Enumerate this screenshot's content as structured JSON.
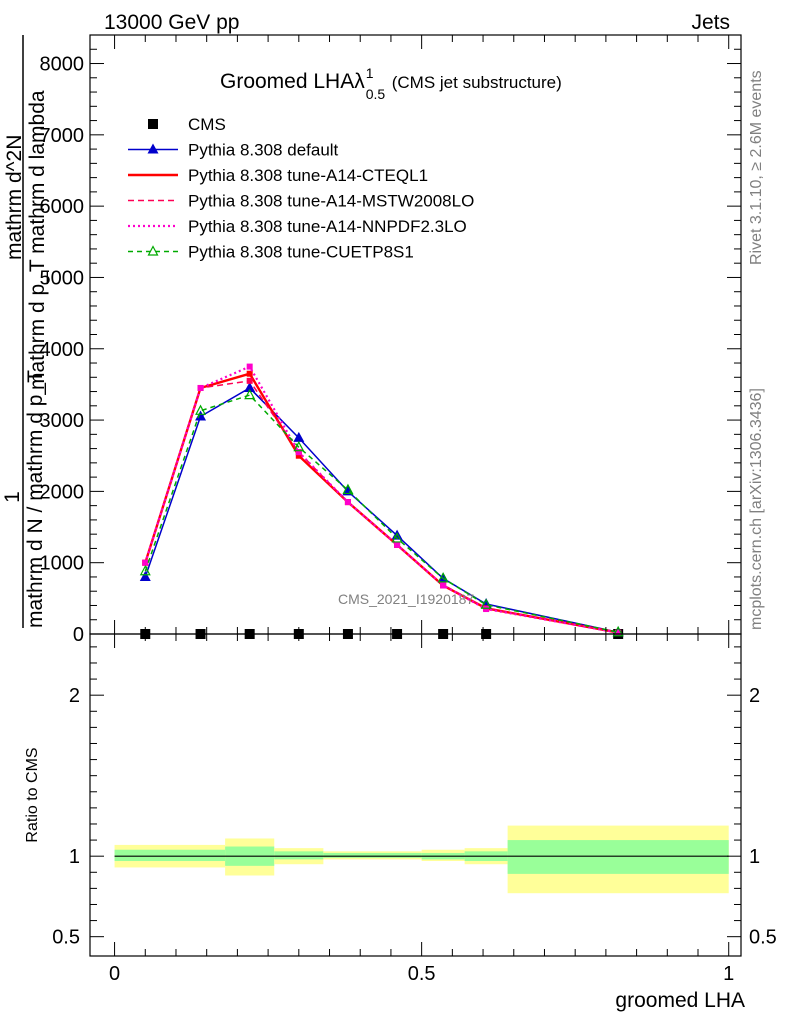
{
  "header": {
    "left": "13000 GeV pp",
    "right": "Jets"
  },
  "side_labels": {
    "rivet": "Rivet 3.1.10, ≥ 2.6M events",
    "mcplots": "mcplots.cern.ch [arXiv:1306.3436]"
  },
  "chart_data": [
    {
      "type": "line",
      "title": "Groomed LHAλ",
      "title_superscript": "1",
      "title_subscript": "0.5",
      "title_suffix": "(CMS jet substructure)",
      "watermark": "CMS_2021_I1920187",
      "ylabel_lines": [
        "1",
        "mathrm d N",
        "mathrm d N",
        "mathrm d p",
        "T",
        "mathrm d lambda"
      ],
      "ylabel_fragments": {
        "top": "mathrm d^2N",
        "top_line2": "mathrm d p_T mathrm d lambda",
        "bottom": "mathrm d N / mathrm d p_T"
      },
      "xlim": [
        -0.04,
        1.02
      ],
      "ylim": [
        0,
        8400
      ],
      "yticks": [
        0,
        1000,
        2000,
        3000,
        4000,
        5000,
        6000,
        7000,
        8000
      ],
      "ytick_labels": [
        "0",
        "1000",
        "2000",
        "3000",
        "4000",
        "5000",
        "6000",
        "7000",
        "8000"
      ],
      "bin_edges": [
        0,
        0.1,
        0.18,
        0.26,
        0.34,
        0.42,
        0.5,
        0.57,
        0.64,
        1.0
      ],
      "x": [
        0.05,
        0.14,
        0.22,
        0.3,
        0.38,
        0.46,
        0.535,
        0.605,
        0.82
      ],
      "legend_position": "top-left",
      "series": [
        {
          "name": "CMS",
          "style": "data",
          "color": "#000000",
          "values": [
            0,
            0,
            0,
            0,
            0,
            0,
            0,
            0,
            0
          ]
        },
        {
          "name": "Pythia 8.308 default",
          "style": "solid-triangle",
          "color": "#0000cc",
          "values": [
            800,
            3050,
            3450,
            2750,
            2000,
            1380,
            780,
            420,
            25
          ]
        },
        {
          "name": "Pythia 8.308 tune-A14-CTEQL1",
          "style": "solid-thick",
          "color": "#ff0000",
          "values": [
            1000,
            3450,
            3650,
            2500,
            1850,
            1250,
            680,
            360,
            20
          ]
        },
        {
          "name": "Pythia 8.308 tune-A14-MSTW2008LO",
          "style": "dashed",
          "color": "#ff0055",
          "values": [
            1000,
            3450,
            3550,
            2550,
            1850,
            1250,
            690,
            360,
            20
          ]
        },
        {
          "name": "Pythia 8.308 tune-A14-NNPDF2.3LO",
          "style": "dotted",
          "color": "#ff00cc",
          "values": [
            1000,
            3450,
            3750,
            2550,
            1850,
            1250,
            680,
            350,
            20
          ]
        },
        {
          "name": "Pythia 8.308 tune-CUETP8S1",
          "style": "dashed-open-triangle",
          "color": "#00aa00",
          "values": [
            880,
            3130,
            3350,
            2620,
            2020,
            1340,
            780,
            410,
            25
          ]
        }
      ]
    },
    {
      "type": "area",
      "ylabel": "Ratio to CMS",
      "xlabel": "groomed LHA",
      "xlim": [
        -0.04,
        1.02
      ],
      "ylim": [
        0.38,
        2.38
      ],
      "yticks": [
        0.5,
        1,
        2
      ],
      "ytick_labels": [
        "0.5",
        "1",
        "2"
      ],
      "xticks": [
        0,
        0.5,
        1
      ],
      "xtick_labels": [
        "0",
        "0.5",
        "1"
      ],
      "reference": 1,
      "bands": [
        {
          "x0": 0.0,
          "x1": 0.18,
          "inner": [
            0.97,
            1.04
          ],
          "outer": [
            0.93,
            1.07
          ]
        },
        {
          "x0": 0.18,
          "x1": 0.26,
          "inner": [
            0.94,
            1.06
          ],
          "outer": [
            0.88,
            1.11
          ]
        },
        {
          "x0": 0.26,
          "x1": 0.34,
          "inner": [
            0.98,
            1.03
          ],
          "outer": [
            0.95,
            1.05
          ]
        },
        {
          "x0": 0.34,
          "x1": 0.5,
          "inner": [
            0.99,
            1.02
          ],
          "outer": [
            0.98,
            1.03
          ]
        },
        {
          "x0": 0.5,
          "x1": 0.57,
          "inner": [
            0.98,
            1.02
          ],
          "outer": [
            0.97,
            1.04
          ]
        },
        {
          "x0": 0.57,
          "x1": 0.64,
          "inner": [
            0.97,
            1.03
          ],
          "outer": [
            0.95,
            1.05
          ]
        },
        {
          "x0": 0.64,
          "x1": 1.0,
          "inner": [
            0.89,
            1.1
          ],
          "outer": [
            0.77,
            1.19
          ]
        }
      ],
      "colors": {
        "inner": "#99ff99",
        "outer": "#ffff99"
      }
    }
  ]
}
